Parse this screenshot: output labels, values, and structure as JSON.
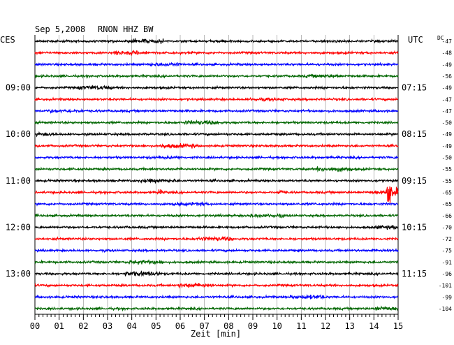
{
  "chart_data": {
    "type": "line",
    "title": "Sep 5,2008   RNON HHZ BW",
    "date": "Sep 5,2008",
    "station": "RNON HHZ BW",
    "xlabel": "Zeit [min]",
    "left_label": "CES",
    "right_label": "UTC",
    "dc_label": "DC",
    "x_ticks": [
      "00",
      "01",
      "02",
      "03",
      "04",
      "05",
      "06",
      "07",
      "08",
      "09",
      "10",
      "11",
      "12",
      "13",
      "14",
      "15"
    ],
    "xlim": [
      0,
      15
    ],
    "trace_colors": [
      "#000000",
      "#ff0000",
      "#0000ff",
      "#006600"
    ],
    "left_hour_labels": [
      {
        "trace": 4,
        "text": "09:00"
      },
      {
        "trace": 8,
        "text": "10:00"
      },
      {
        "trace": 12,
        "text": "11:00"
      },
      {
        "trace": 16,
        "text": "12:00"
      },
      {
        "trace": 20,
        "text": "13:00"
      }
    ],
    "right_hour_labels": [
      {
        "trace": 4,
        "text": "07:15"
      },
      {
        "trace": 8,
        "text": "08:15"
      },
      {
        "trace": 12,
        "text": "09:15"
      },
      {
        "trace": 16,
        "text": "10:15"
      },
      {
        "trace": 20,
        "text": "11:15"
      }
    ],
    "dc_offsets": [
      "-47",
      "-48",
      "-49",
      "-56",
      "-49",
      "-47",
      "-47",
      "-50",
      "-49",
      "-49",
      "-50",
      "-55",
      "-55",
      "-65",
      "-65",
      "-66",
      "-70",
      "-72",
      "-75",
      "-91",
      "-96",
      "-101",
      "-99",
      "-104"
    ],
    "events": [
      {
        "trace": 13,
        "minute": 14.55,
        "amplitude": "large"
      },
      {
        "trace": 13,
        "minute": 10.1,
        "amplitude": "small"
      },
      {
        "trace": 13,
        "minute": 5.1,
        "amplitude": "small"
      },
      {
        "trace": 25,
        "minute": 4.8,
        "amplitude": "small"
      }
    ]
  }
}
